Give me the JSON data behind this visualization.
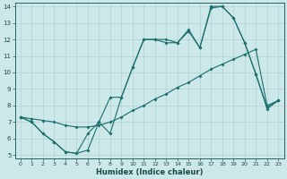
{
  "xlabel": "Humidex (Indice chaleur)",
  "xlim": [
    -0.5,
    23.5
  ],
  "ylim": [
    4.8,
    14.2
  ],
  "yticks": [
    5,
    6,
    7,
    8,
    9,
    10,
    11,
    12,
    13,
    14
  ],
  "xticks": [
    0,
    1,
    2,
    3,
    4,
    5,
    6,
    7,
    8,
    9,
    10,
    11,
    12,
    13,
    14,
    15,
    16,
    17,
    18,
    19,
    20,
    21,
    22,
    23
  ],
  "bg_color": "#cce8e8",
  "grid_color": "#aacccc",
  "line_color": "#1a6e6e",
  "line1_x": [
    0,
    1,
    2,
    3,
    4,
    5,
    6,
    7,
    8,
    9,
    10,
    11,
    12,
    13,
    14,
    15,
    16,
    17,
    18,
    19,
    20,
    21,
    22,
    23
  ],
  "line1_y": [
    7.3,
    7.0,
    6.3,
    5.8,
    5.2,
    5.1,
    5.3,
    7.0,
    8.5,
    8.5,
    10.3,
    12.0,
    12.0,
    12.0,
    11.8,
    12.6,
    11.5,
    14.0,
    14.0,
    13.3,
    11.8,
    9.9,
    7.9,
    8.3
  ],
  "line2_x": [
    0,
    1,
    2,
    3,
    4,
    5,
    6,
    7,
    8,
    9,
    10,
    11,
    12,
    13,
    14,
    15,
    16,
    17,
    18,
    19,
    20,
    21,
    22,
    23
  ],
  "line2_y": [
    7.3,
    7.0,
    6.3,
    5.8,
    5.2,
    5.1,
    6.3,
    7.0,
    6.3,
    8.5,
    10.3,
    12.0,
    12.0,
    11.8,
    11.8,
    12.5,
    11.5,
    13.9,
    14.0,
    13.3,
    11.8,
    9.9,
    7.8,
    8.3
  ],
  "line3_x": [
    0,
    1,
    2,
    3,
    4,
    5,
    6,
    7,
    8,
    9,
    10,
    11,
    12,
    13,
    14,
    15,
    16,
    17,
    18,
    19,
    20,
    21,
    22,
    23
  ],
  "line3_y": [
    7.3,
    7.2,
    7.1,
    7.0,
    6.8,
    6.7,
    6.7,
    6.8,
    7.0,
    7.3,
    7.7,
    8.0,
    8.4,
    8.7,
    9.1,
    9.4,
    9.8,
    10.2,
    10.5,
    10.8,
    11.1,
    11.4,
    8.0,
    8.3
  ]
}
